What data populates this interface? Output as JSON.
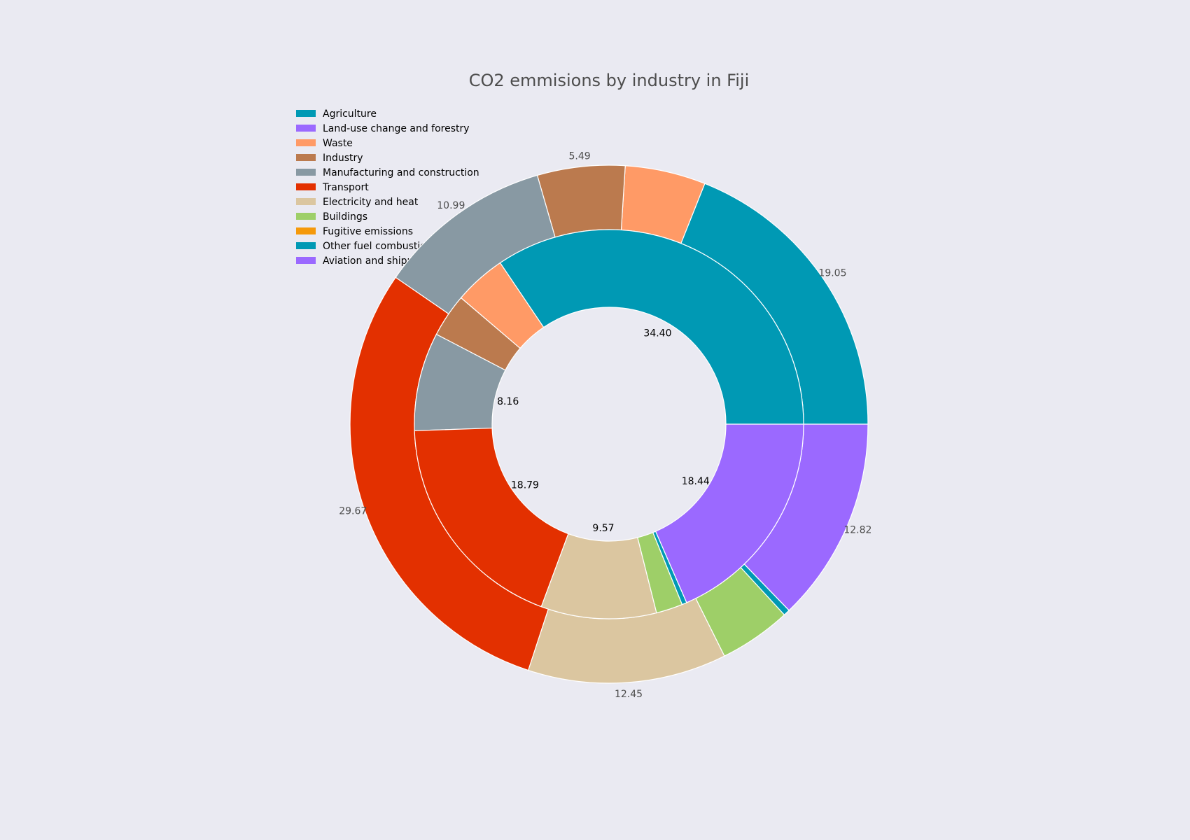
{
  "chart_data": {
    "type": "pie",
    "title": "CO2 emmisions by industry in Fiji",
    "legend": {
      "placement": "upper-left",
      "entries": [
        "Agriculture",
        "Land-use change and forestry",
        "Waste",
        "Industry",
        "Manufacturing and construction",
        "Transport",
        "Electricity and heat",
        "Buildings",
        "Fugitive emissions",
        "Other fuel combustion",
        "Aviation and shipping"
      ]
    },
    "colors": {
      "Agriculture": "#0099b4",
      "Land-use change and forestry": "#9b69ff",
      "Waste": "#ff9a66",
      "Industry": "#bb7a4e",
      "Manufacturing and construction": "#8899a3",
      "Transport": "#e33000",
      "Electricity and heat": "#dbc6a0",
      "Buildings": "#9ecf68",
      "Fugitive emissions": "#f5990a",
      "Other fuel combustion": "#0099b4",
      "Aviation and shipping": "#9b69ff"
    },
    "outer_ring": [
      {
        "category": "Agriculture",
        "value": 19.05,
        "label": "19.05"
      },
      {
        "category": "Waste",
        "value": 5.05,
        "label": ""
      },
      {
        "category": "Industry",
        "value": 5.49,
        "label": "5.49"
      },
      {
        "category": "Manufacturing and construction",
        "value": 10.99,
        "label": "10.99"
      },
      {
        "category": "Transport",
        "value": 29.67,
        "label": "29.67"
      },
      {
        "category": "Electricity and heat",
        "value": 12.45,
        "label": "12.45"
      },
      {
        "category": "Buildings",
        "value": 4.5,
        "label": ""
      },
      {
        "category": "Other fuel combustion",
        "value": 0.4,
        "label": ""
      },
      {
        "category": "Land-use change and forestry",
        "value": 12.82,
        "label": "12.82"
      }
    ],
    "inner_ring": [
      {
        "category": "Agriculture",
        "value": 34.4,
        "label": "34.40"
      },
      {
        "category": "Waste",
        "value": 4.3,
        "label": ""
      },
      {
        "category": "Industry",
        "value": 3.6,
        "label": ""
      },
      {
        "category": "Manufacturing and construction",
        "value": 8.16,
        "label": "8.16"
      },
      {
        "category": "Transport",
        "value": 18.79,
        "label": "18.79"
      },
      {
        "category": "Electricity and heat",
        "value": 9.57,
        "label": "9.57"
      },
      {
        "category": "Buildings",
        "value": 2.2,
        "label": ""
      },
      {
        "category": "Other fuel combustion",
        "value": 0.4,
        "label": ""
      },
      {
        "category": "Aviation and shipping",
        "value": 18.44,
        "label": "18.44"
      }
    ]
  }
}
